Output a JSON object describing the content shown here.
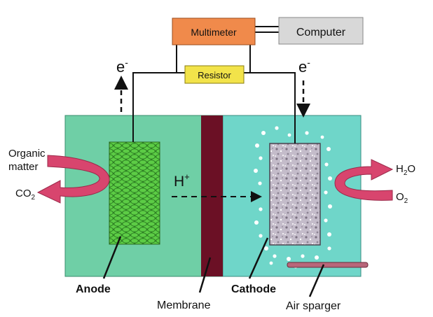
{
  "boxes": {
    "multimeter": "Multimeter",
    "computer": "Computer",
    "resistor": "Resistor"
  },
  "electrons": {
    "left": "e",
    "right": "e",
    "superscript": "-"
  },
  "inputs": {
    "organic_line1": "Organic",
    "organic_line2": "matter",
    "co2_base": "CO",
    "co2_sub": "2"
  },
  "outputs": {
    "h2o_h": "H",
    "h2o_sub": "2",
    "h2o_o": "O",
    "o2_base": "O",
    "o2_sub": "2"
  },
  "proton": {
    "base": "H",
    "sup": "+"
  },
  "labels": {
    "anode": "Anode",
    "membrane": "Membrane",
    "cathode": "Cathode",
    "air_sparger": "Air sparger"
  },
  "colors": {
    "chamber_left": "#6fcfa6",
    "chamber_right": "#6fd6c9",
    "membrane": "#6b1025",
    "multimeter": "#f08a4b",
    "computer": "#d8d8d8",
    "resistor": "#f2e34a",
    "arrow": "#d8456e",
    "anode": "#4cbb3a",
    "cathode": "#c9c2cf"
  }
}
